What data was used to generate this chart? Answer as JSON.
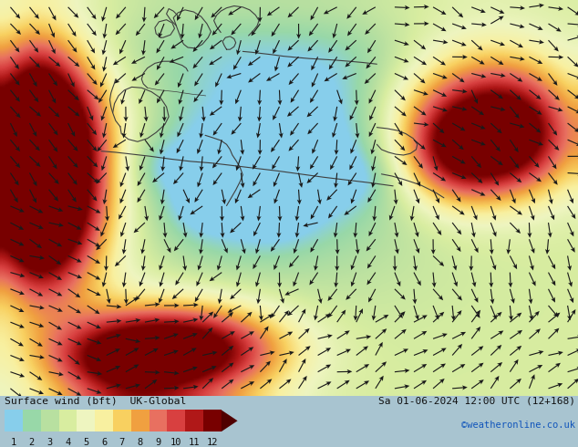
{
  "title_left": "Surface wind (bft)  UK-Global",
  "title_right": "Sa 01-06-2024 12:00 UTC (12+168)",
  "credit": "©weatheronline.co.uk",
  "colorbar_ticks": [
    1,
    2,
    3,
    4,
    5,
    6,
    7,
    8,
    9,
    10,
    11,
    12
  ],
  "colorbar_colors": [
    "#87ceeb",
    "#98d8a8",
    "#b8e0a0",
    "#d8eda0",
    "#eef5c0",
    "#f8f0a0",
    "#f8d060",
    "#f0a040",
    "#e87060",
    "#d84040",
    "#b01818",
    "#780000"
  ],
  "fig_width": 6.34,
  "fig_height": 4.9,
  "dpi": 100
}
